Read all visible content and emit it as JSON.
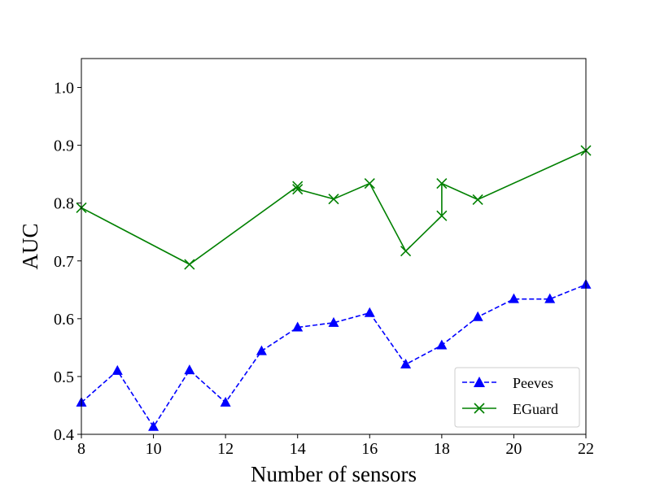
{
  "chart_data": {
    "type": "line",
    "title": "",
    "xlabel": "Number of sensors",
    "ylabel": "AUC",
    "xlim": [
      8,
      22
    ],
    "ylim": [
      0.4,
      1.05
    ],
    "xticks": [
      8,
      10,
      12,
      14,
      16,
      18,
      20,
      22
    ],
    "yticks": [
      0.4,
      0.5,
      0.6,
      0.7,
      0.8,
      0.9,
      1.0
    ],
    "xtick_labels": [
      "8",
      "10",
      "12",
      "14",
      "16",
      "18",
      "20",
      "22"
    ],
    "ytick_labels": [
      "0.4",
      "0.5",
      "0.6",
      "0.7",
      "0.8",
      "0.9",
      "1.0"
    ],
    "grid": false,
    "legend_placement": "lower-right",
    "series": [
      {
        "name": "Peeves",
        "color": "#0000ff",
        "linestyle": "dashed",
        "marker": "triangle",
        "points": [
          [
            8,
            0.455
          ],
          [
            9,
            0.51
          ],
          [
            10,
            0.413
          ],
          [
            11,
            0.511
          ],
          [
            12,
            0.455
          ],
          [
            13,
            0.544
          ],
          [
            14,
            0.585
          ],
          [
            15,
            0.593
          ],
          [
            16,
            0.61
          ],
          [
            17,
            0.521
          ],
          [
            18,
            0.554
          ],
          [
            19,
            0.603
          ],
          [
            20,
            0.634
          ],
          [
            21,
            0.634
          ],
          [
            22,
            0.659
          ]
        ]
      },
      {
        "name": "EGuard",
        "color": "#008000",
        "linestyle": "solid",
        "marker": "x",
        "points": [
          [
            8,
            0.792
          ],
          [
            11,
            0.694
          ],
          [
            14,
            0.829
          ],
          [
            14,
            0.824
          ],
          [
            15,
            0.807
          ],
          [
            16,
            0.834
          ],
          [
            17,
            0.717
          ],
          [
            18,
            0.778
          ],
          [
            18,
            0.834
          ],
          [
            19,
            0.806
          ],
          [
            22,
            0.891
          ]
        ]
      }
    ]
  }
}
